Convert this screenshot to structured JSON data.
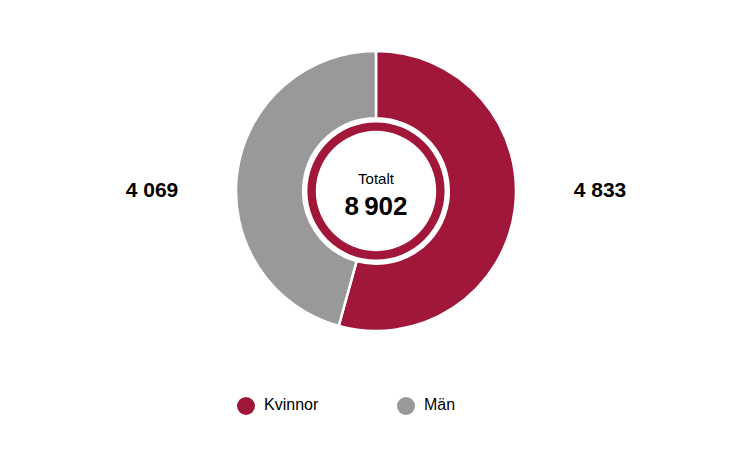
{
  "chart_data": {
    "type": "pie",
    "categories": [
      "Kvinnor",
      "Män"
    ],
    "values": [
      4833,
      4069
    ],
    "value_labels": [
      "4 833",
      "4 069"
    ],
    "colors": [
      "#A0173A",
      "#999999"
    ],
    "color": "#A0173A",
    "data_labels": true,
    "legend": "bottom",
    "annotations": [
      "Totalt"
    ],
    "total": {
      "value": 8902,
      "label": "8 902"
    }
  }
}
